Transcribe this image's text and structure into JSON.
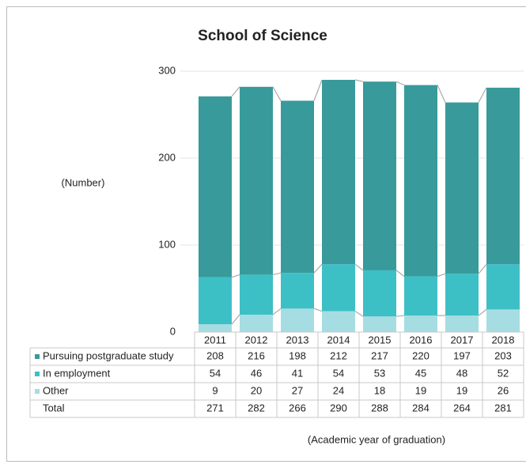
{
  "chart_data": {
    "type": "bar",
    "stacked": true,
    "title": "School of Science",
    "y_label": "(Number)",
    "x_label": "(Academic year of graduation)",
    "categories": [
      "2011",
      "2012",
      "2013",
      "2014",
      "2015",
      "2016",
      "2017",
      "2018"
    ],
    "series": [
      {
        "name": "Pursuing postgraduate study",
        "color": "#389a9a",
        "values": [
          208,
          216,
          198,
          212,
          217,
          220,
          197,
          203
        ]
      },
      {
        "name": "In employment",
        "color": "#3dbfc6",
        "values": [
          54,
          46,
          41,
          54,
          53,
          45,
          48,
          52
        ]
      },
      {
        "name": "Other",
        "color": "#a6dde2",
        "values": [
          9,
          20,
          27,
          24,
          18,
          19,
          19,
          26
        ]
      }
    ],
    "total_label": "Total",
    "totals": [
      271,
      282,
      266,
      290,
      288,
      284,
      264,
      281
    ],
    "ylim": [
      0,
      300
    ],
    "yticks": [
      0,
      100,
      200,
      300
    ],
    "grid": true
  }
}
